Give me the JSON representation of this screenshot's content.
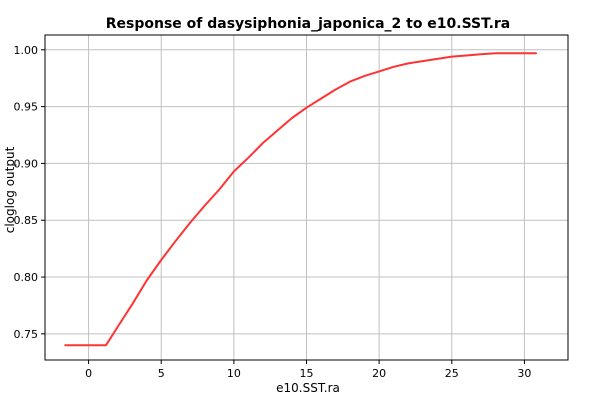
{
  "chart_data": {
    "type": "line",
    "title": "Response of dasysiphonia_japonica_2 to e10.SST.ra",
    "xlabel": "e10.SST.ra",
    "ylabel": "cloglog output",
    "xlim": [
      -3,
      33
    ],
    "ylim": [
      0.727,
      1.013
    ],
    "x_ticks": [
      0,
      5,
      10,
      15,
      20,
      25,
      30
    ],
    "y_ticks": [
      0.75,
      0.8,
      0.85,
      0.9,
      0.95,
      1.0
    ],
    "x_tick_labels": [
      "0",
      "5",
      "10",
      "15",
      "20",
      "25",
      "30"
    ],
    "y_tick_labels": [
      "0.75",
      "0.80",
      "0.85",
      "0.90",
      "0.95",
      "1.00"
    ],
    "grid": true,
    "legend": "none",
    "series": [
      {
        "color": "#ff3333",
        "x": [
          -1.6,
          1.2,
          2.0,
          3.0,
          4.0,
          5.0,
          6.0,
          7.0,
          8.0,
          9.0,
          10.0,
          11.0,
          12.0,
          13.0,
          14.0,
          15.0,
          16.0,
          17.0,
          18.0,
          19.0,
          20.0,
          21.0,
          22.0,
          23.0,
          24.0,
          25.0,
          26.0,
          27.0,
          28.0,
          29.0,
          30.0,
          30.8
        ],
        "y": [
          0.74,
          0.74,
          0.756,
          0.776,
          0.797,
          0.815,
          0.832,
          0.848,
          0.863,
          0.877,
          0.893,
          0.905,
          0.918,
          0.929,
          0.94,
          0.949,
          0.957,
          0.965,
          0.972,
          0.977,
          0.981,
          0.985,
          0.988,
          0.99,
          0.992,
          0.994,
          0.995,
          0.996,
          0.997,
          0.997,
          0.997,
          0.997
        ]
      }
    ]
  }
}
